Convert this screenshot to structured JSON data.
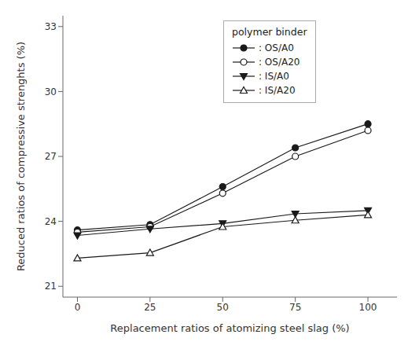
{
  "chart_data": {
    "type": "line",
    "xlabel": "Replacement ratios of atomizing steel slag (%)",
    "ylabel": "Reduced ratios of compressive strenghts (%)",
    "legend_title": "polymer binder",
    "legend": "upper center",
    "grid": false,
    "x": [
      0,
      25,
      50,
      75,
      100
    ],
    "series": [
      {
        "name": ": OS/A0",
        "color": "#1a1a1a",
        "marker": "circle",
        "values": [
          23.6,
          23.85,
          25.6,
          27.4,
          28.5
        ]
      },
      {
        "name": ": OS/A20",
        "color": "#1a1a1a",
        "marker": "open_circle",
        "values": [
          23.5,
          23.75,
          25.3,
          27.0,
          28.2
        ]
      },
      {
        "name": ": IS/A0",
        "color": "#1a1a1a",
        "marker": "triangle_down",
        "values": [
          23.35,
          23.65,
          23.9,
          24.35,
          24.5
        ]
      },
      {
        "name": ": IS/A20",
        "color": "#1a1a1a",
        "marker": "open_triangle_up",
        "values": [
          22.3,
          22.55,
          23.75,
          24.05,
          24.3
        ]
      }
    ],
    "xlim": [
      -5,
      110
    ],
    "ylim": [
      20.5,
      33.5
    ],
    "xticks": [
      0,
      25,
      50,
      75,
      100
    ],
    "yticks": [
      21,
      24,
      27,
      30,
      33
    ]
  }
}
